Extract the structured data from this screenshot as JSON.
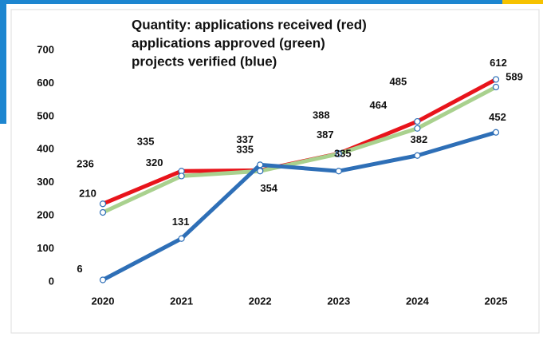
{
  "chart_data": {
    "type": "line",
    "title": [
      "Quantity: applications received (red)",
      "applications approved (green)",
      "projects verified (blue)"
    ],
    "categories": [
      "2020",
      "2021",
      "2022",
      "2023",
      "2024",
      "2025"
    ],
    "series": [
      {
        "name": "applications received",
        "color": "#e8141b",
        "values": [
          236,
          335,
          337,
          388,
          485,
          612
        ]
      },
      {
        "name": "applications approved",
        "color": "#a9d18e",
        "values": [
          210,
          320,
          335,
          387,
          464,
          589
        ]
      },
      {
        "name": "projects verified",
        "color": "#2e6fb7",
        "values": [
          6,
          131,
          354,
          335,
          382,
          452
        ]
      }
    ],
    "ylim": [
      0,
      700
    ],
    "yticks": [
      0,
      100,
      200,
      300,
      400,
      500,
      600,
      700
    ],
    "grid": false
  }
}
